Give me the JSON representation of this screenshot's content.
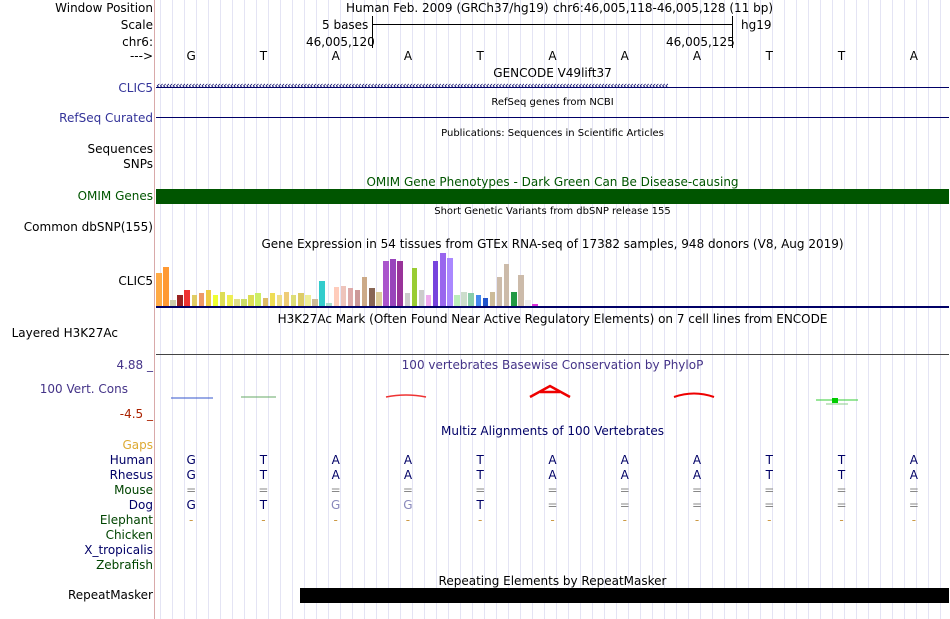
{
  "position": {
    "window_position_label": "Window Position",
    "scale_label": "Scale",
    "chrom_label": "chr6:",
    "arrow_label": "--->",
    "assembly_text": "Human Feb. 2009 (GRCh37/hg19)",
    "range_text": "chr6:46,005,118-46,005,128 (11 bp)",
    "scale_bases": "5 bases",
    "scale_db": "hg19",
    "coord_left": "46,005,120",
    "coord_right": "46,005,125",
    "bases": [
      "G",
      "T",
      "A",
      "A",
      "T",
      "A",
      "A",
      "A",
      "T",
      "T",
      "A"
    ]
  },
  "tracks": {
    "gencode": {
      "title": "GENCODE V49lift37",
      "label": "CLIC5",
      "strand_symbol": "‹"
    },
    "refseq": {
      "title": "RefSeq genes from NCBI",
      "label": "RefSeq Curated"
    },
    "publications": {
      "title": "Publications: Sequences in Scientific Articles",
      "label1": "Sequences",
      "label2": "SNPs"
    },
    "omim": {
      "title": "OMIM Gene Phenotypes - Dark Green Can Be Disease-causing",
      "label": "OMIM Genes",
      "color": "#005500"
    },
    "dbsnp": {
      "title": "Short Genetic Variants from dbSNP release 155",
      "label": "Common dbSNP(155)"
    },
    "gtex": {
      "title": "Gene Expression in 54 tissues from GTEx RNA-seq of 17382 samples, 948 donors (V8, Aug 2019)",
      "label": "CLIC5",
      "values": [
        0.62,
        0.74,
        0.12,
        0.2,
        0.3,
        0.2,
        0.24,
        0.3,
        0.2,
        0.26,
        0.2,
        0.14,
        0.14,
        0.2,
        0.24,
        0.16,
        0.24,
        0.2,
        0.26,
        0.2,
        0.24,
        0.2,
        0.14,
        0.48,
        0.06,
        0.36,
        0.38,
        0.34,
        0.3,
        0.55,
        0.34,
        0.26,
        0.84,
        0.88,
        0.84,
        0.24,
        0.72,
        0.3,
        0.2,
        0.84,
        1.0,
        0.9,
        0.2,
        0.26,
        0.24,
        0.2,
        0.16,
        0.26,
        0.54,
        0.8,
        0.26,
        0.58,
        0.12,
        0.04
      ],
      "colors": [
        "#ffaa44",
        "#ff9933",
        "#ccccaa",
        "#992222",
        "#ee3333",
        "#e0cc66",
        "#ee9966",
        "#eecc44",
        "#eeff33",
        "#dddd55",
        "#eeee55",
        "#e0e088",
        "#ccdd66",
        "#dddd55",
        "#ccee66",
        "#ddbb66",
        "#eedd55",
        "#eedd88",
        "#eecc77",
        "#dddd77",
        "#ddcc66",
        "#eeee99",
        "#ccbb99",
        "#33cccc",
        "#aaddcc",
        "#ffccbb",
        "#eec4bb",
        "#ddaaaa",
        "#cc9999",
        "#ccaa88",
        "#886655",
        "#ddcc99",
        "#aa55cc",
        "#9944bb",
        "#993399",
        "#cccccc",
        "#99cc33",
        "#cccccc",
        "#eeaaee",
        "#7744dd",
        "#9966ee",
        "#aa88ff",
        "#bbeebb",
        "#ccddcc",
        "#88ccaa",
        "#4488ee",
        "#2255cc",
        "#ccbb99",
        "#ccbbaa",
        "#ccbbaa",
        "#229944",
        "#ccbbaa",
        "#eeeeee",
        "#dd33dd"
      ]
    },
    "h3k27ac": {
      "title": "H3K27Ac Mark (Often Found Near Active Regulatory Elements) on 7 cell lines from ENCODE",
      "label": "Layered H3K27Ac"
    },
    "phylop": {
      "title": "100 vertebrates Basewise Conservation by PhyloP",
      "label": "100 Vert. Cons",
      "max_label": "4.88 _",
      "min_label": "-4.5 _"
    },
    "multiz": {
      "title": "Multiz Alignments of 100 Vertebrates",
      "gaps_label": "Gaps",
      "species": [
        {
          "name": "Human",
          "color": "#000066",
          "bases": [
            "G",
            "T",
            "A",
            "A",
            "T",
            "A",
            "A",
            "A",
            "T",
            "T",
            "A"
          ]
        },
        {
          "name": "Rhesus",
          "color": "#000066",
          "bases": [
            "G",
            "T",
            "A",
            "A",
            "T",
            "A",
            "A",
            "A",
            "T",
            "T",
            "A"
          ]
        },
        {
          "name": "Mouse",
          "color": "#004400",
          "bases": [
            "=",
            "=",
            "=",
            "=",
            "=",
            "=",
            "=",
            "=",
            "=",
            "=",
            "="
          ]
        },
        {
          "name": "Dog",
          "color": "#000066",
          "bases": [
            "G",
            "T",
            "G",
            "G",
            "T",
            "=",
            "=",
            "=",
            "=",
            "=",
            "="
          ]
        },
        {
          "name": "Elephant",
          "color": "#004400",
          "bases": [
            "-",
            "-",
            "-",
            "-",
            "-",
            "-",
            "-",
            "-",
            "-",
            "-",
            "-"
          ]
        },
        {
          "name": "Chicken",
          "color": "#004400",
          "bases": []
        },
        {
          "name": "X_tropicalis",
          "color": "#000066",
          "bases": []
        },
        {
          "name": "Zebrafish",
          "color": "#004400",
          "bases": []
        }
      ]
    },
    "repeatmasker": {
      "title": "Repeating Elements by RepeatMasker",
      "label": "RepeatMasker"
    }
  },
  "colors": {
    "navy": "#000066",
    "purple": "#443388",
    "blue_label": "#333399",
    "orange": "#ddaa33",
    "omim_green": "#005500"
  }
}
